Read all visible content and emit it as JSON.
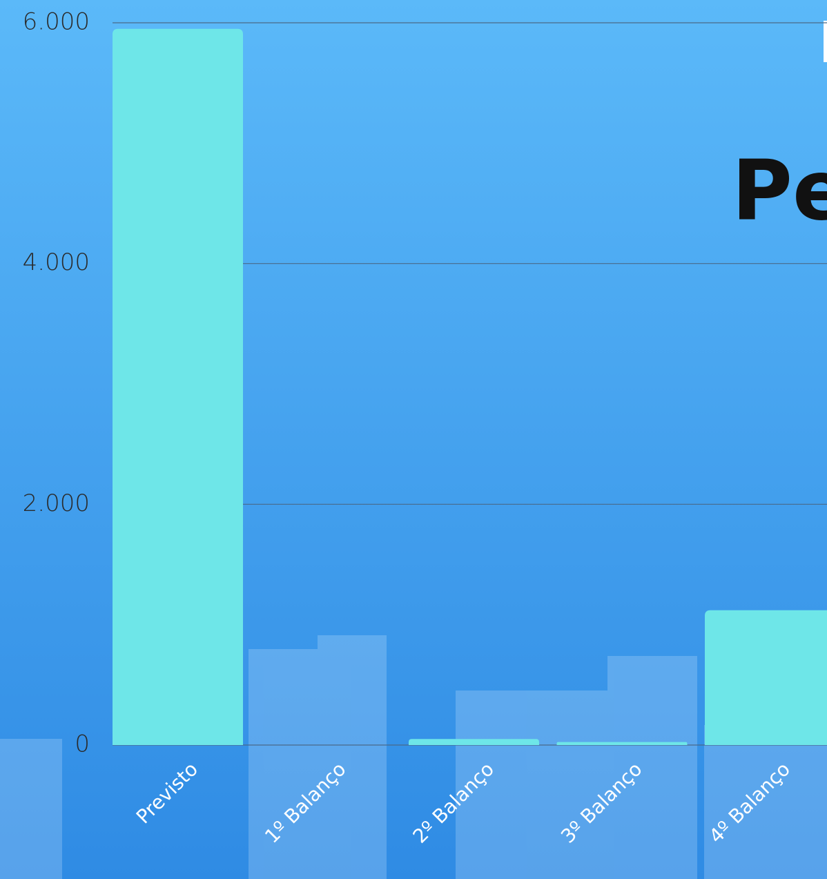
{
  "chart_data": {
    "type": "bar",
    "title": "Pe",
    "categories": [
      "Previsto",
      "1º Balanço",
      "2º Balanço",
      "3º Balanço",
      "4º Balanço"
    ],
    "values": [
      5950,
      0,
      50,
      25,
      1120
    ],
    "color": "#6ee6e8",
    "ylim": [
      0,
      6000
    ],
    "yticks": [
      0,
      {
        "value": 2000,
        "label": "2.000"
      },
      {
        "value": 4000,
        "label": "4.000"
      },
      {
        "value": 6000,
        "label": "6.000"
      }
    ],
    "grid": true
  }
}
